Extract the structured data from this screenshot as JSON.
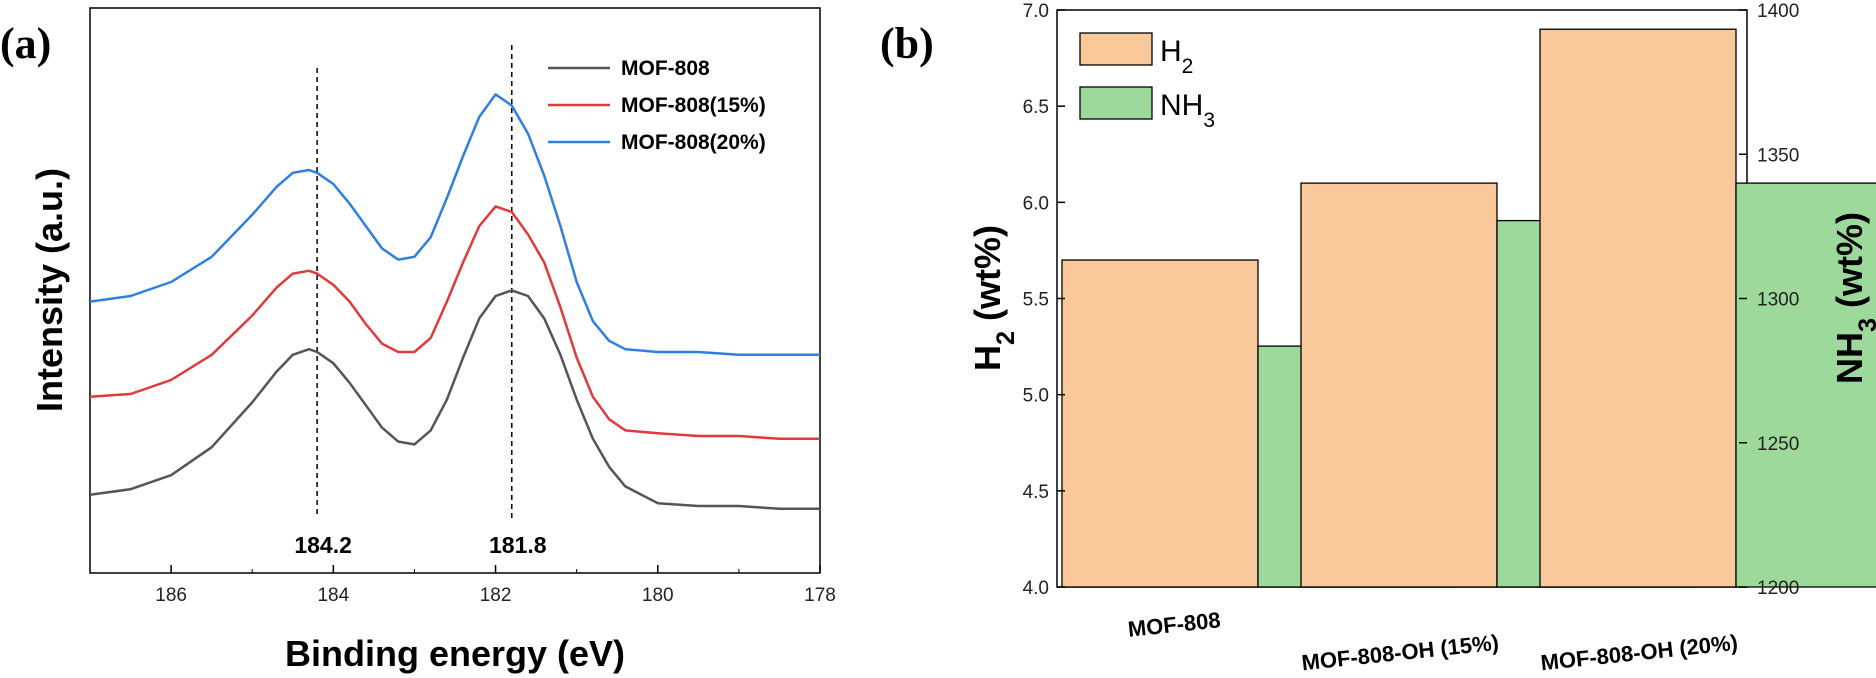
{
  "chart_data": [
    {
      "type": "line",
      "panel_label": "(a)",
      "xlabel": "Binding energy (eV)",
      "ylabel": "Intensity (a.u.)",
      "xlim": [
        187,
        178
      ],
      "x_reversed": true,
      "x_ticks": [
        186,
        184,
        182,
        180,
        178
      ],
      "y_ticks_shown": false,
      "legend_position": "top-right",
      "series": [
        {
          "name": "MOF-808",
          "color": "#555555",
          "x": [
            187.0,
            186.5,
            186.0,
            185.5,
            185.0,
            184.7,
            184.5,
            184.3,
            184.2,
            184.0,
            183.8,
            183.6,
            183.4,
            183.2,
            183.0,
            182.8,
            182.6,
            182.4,
            182.2,
            182.0,
            181.8,
            181.6,
            181.4,
            181.2,
            181.0,
            180.8,
            180.6,
            180.4,
            180.0,
            179.5,
            179.0,
            178.5,
            178.0
          ],
          "y": [
            0.09,
            0.11,
            0.16,
            0.26,
            0.42,
            0.53,
            0.59,
            0.61,
            0.6,
            0.56,
            0.49,
            0.41,
            0.33,
            0.28,
            0.27,
            0.32,
            0.43,
            0.58,
            0.72,
            0.8,
            0.82,
            0.8,
            0.72,
            0.59,
            0.43,
            0.29,
            0.19,
            0.12,
            0.06,
            0.05,
            0.05,
            0.04,
            0.04
          ]
        },
        {
          "name": "MOF-808(15%)",
          "color": "#e03a3a",
          "x": [
            187.0,
            186.5,
            186.0,
            185.5,
            185.0,
            184.7,
            184.5,
            184.3,
            184.2,
            184.0,
            183.8,
            183.6,
            183.4,
            183.2,
            183.0,
            182.8,
            182.6,
            182.4,
            182.2,
            182.0,
            181.8,
            181.6,
            181.4,
            181.2,
            181.0,
            180.8,
            180.6,
            180.4,
            180.0,
            179.5,
            179.0,
            178.5,
            178.0
          ],
          "y": [
            0.44,
            0.45,
            0.5,
            0.59,
            0.73,
            0.83,
            0.88,
            0.89,
            0.88,
            0.84,
            0.78,
            0.7,
            0.63,
            0.6,
            0.6,
            0.65,
            0.78,
            0.92,
            1.05,
            1.12,
            1.1,
            1.02,
            0.92,
            0.76,
            0.58,
            0.44,
            0.36,
            0.32,
            0.31,
            0.3,
            0.3,
            0.29,
            0.29
          ]
        },
        {
          "name": "MOF-808(20%)",
          "color": "#2e7fe0",
          "x": [
            187.0,
            186.5,
            186.0,
            185.5,
            185.0,
            184.7,
            184.5,
            184.3,
            184.2,
            184.0,
            183.8,
            183.6,
            183.4,
            183.2,
            183.0,
            182.8,
            182.6,
            182.4,
            182.2,
            182.0,
            181.8,
            181.6,
            181.4,
            181.2,
            181.0,
            180.8,
            180.6,
            180.4,
            180.0,
            179.5,
            179.0,
            178.5,
            178.0
          ],
          "y": [
            0.78,
            0.8,
            0.85,
            0.94,
            1.09,
            1.19,
            1.24,
            1.25,
            1.24,
            1.2,
            1.13,
            1.05,
            0.97,
            0.93,
            0.94,
            1.01,
            1.15,
            1.3,
            1.44,
            1.52,
            1.48,
            1.38,
            1.23,
            1.05,
            0.85,
            0.71,
            0.64,
            0.61,
            0.6,
            0.6,
            0.59,
            0.59,
            0.59
          ]
        }
      ],
      "annotations": [
        {
          "text": "184.2",
          "x": 184.2,
          "dashed_line": true
        },
        {
          "text": "181.8",
          "x": 181.8,
          "dashed_line": true
        }
      ]
    },
    {
      "type": "bar",
      "panel_label": "(b)",
      "categories": [
        "MOF-808",
        "MOF-808-OH (15%)",
        "MOF-808-OH (20%)"
      ],
      "ylabel_left": "H2 (wt%)",
      "ylabel_right": "NH3 (wt%)",
      "ylim_left": [
        4.0,
        7.0
      ],
      "ylim_right": [
        1200,
        1400
      ],
      "y_ticks_left": [
        "4.0",
        "4.5",
        "5.0",
        "5.5",
        "6.0",
        "6.5",
        "7.0"
      ],
      "y_ticks_right": [
        "1200",
        "1250",
        "1300",
        "1350",
        "1400"
      ],
      "legend_position": "top-left",
      "series": [
        {
          "name": "H2",
          "axis": "left",
          "color": "#f9c89b",
          "values": [
            5.7,
            6.1,
            6.9
          ]
        },
        {
          "name": "NH3",
          "axis": "right",
          "color": "#9ed99c",
          "values": [
            1283.5,
            1327,
            1340
          ]
        }
      ]
    }
  ]
}
